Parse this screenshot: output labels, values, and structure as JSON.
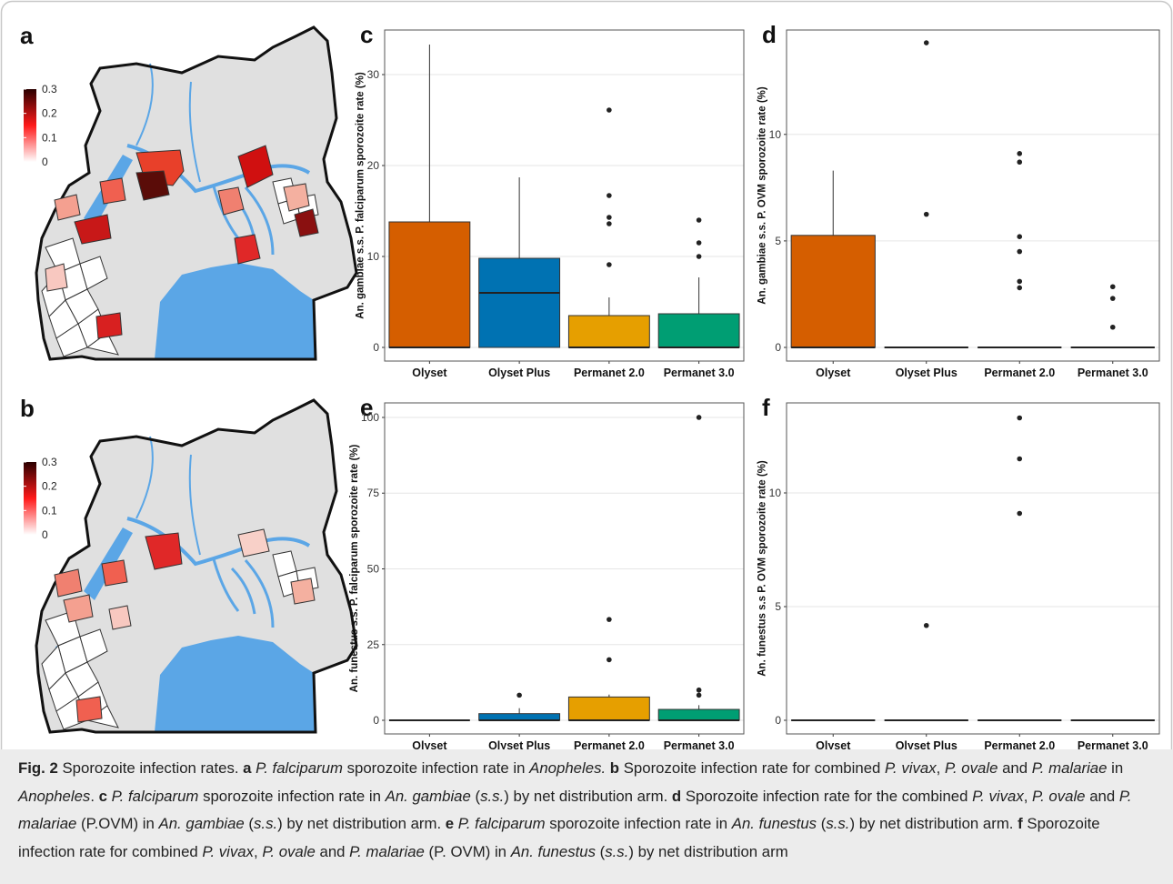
{
  "maps": [
    {
      "label": "a",
      "legend_lim": [
        0,
        0.3
      ],
      "legend_ticks": [
        0,
        0.1,
        0.2,
        0.3
      ],
      "legend_colors": [
        "#ffffff",
        "#ff1a1a",
        "#2a0000"
      ]
    },
    {
      "label": "b",
      "legend_lim": [
        0,
        0.3
      ],
      "legend_ticks": [
        0,
        0.1,
        0.2,
        0.3
      ],
      "legend_colors": [
        "#ffffff",
        "#ff1a1a",
        "#2a0000"
      ]
    }
  ],
  "chart_data": [
    {
      "type": "box",
      "label": "c",
      "y_label": "An. gambiae s.s. P. falciparum sporozoite rate (%)",
      "categories": [
        "Olyset",
        "Olyset Plus",
        "Permanet 2.0",
        "Permanet 3.0"
      ],
      "colors": [
        "#d55e00",
        "#0072b2",
        "#e69f00",
        "#009e73"
      ],
      "boxes": [
        {
          "whisker_low": 0,
          "q1": 0,
          "median": 0,
          "q3": 13.8,
          "whisker_high": 33.3,
          "outliers": []
        },
        {
          "whisker_low": 0,
          "q1": 0,
          "median": 6,
          "q3": 9.8,
          "whisker_high": 18.7,
          "outliers": []
        },
        {
          "whisker_low": 0,
          "q1": 0,
          "median": 0,
          "q3": 3.5,
          "whisker_high": 5.5,
          "outliers": [
            9.1,
            13.6,
            14.3,
            16.7,
            26.1
          ]
        },
        {
          "whisker_low": 0,
          "q1": 0,
          "median": 0,
          "q3": 3.7,
          "whisker_high": 7.7,
          "outliers": [
            10,
            11.5,
            14
          ]
        }
      ],
      "ylim": [
        -1.5,
        34.9
      ],
      "yticks": [
        0,
        10,
        20,
        30
      ],
      "grid": true
    },
    {
      "type": "box",
      "label": "d",
      "y_label": "An. gambiae s.s. P. OVM sporozoite rate (%)",
      "categories": [
        "Olyset",
        "Olyset Plus",
        "Permanet 2.0",
        "Permanet 3.0"
      ],
      "colors": [
        "#d55e00",
        "#0072b2",
        "#e69f00",
        "#009e73"
      ],
      "boxes": [
        {
          "whisker_low": 0,
          "q1": 0,
          "median": 0,
          "q3": 5.26,
          "whisker_high": 8.3,
          "outliers": []
        },
        {
          "whisker_low": 0,
          "q1": 0,
          "median": 0,
          "q3": 0,
          "whisker_high": 0,
          "outliers": [
            6.25,
            14.3
          ]
        },
        {
          "whisker_low": 0,
          "q1": 0,
          "median": 0,
          "q3": 0,
          "whisker_high": 0,
          "outliers": [
            2.8,
            3.1,
            4.5,
            5.2,
            8.7,
            9.1
          ]
        },
        {
          "whisker_low": 0,
          "q1": 0,
          "median": 0,
          "q3": 0,
          "whisker_high": 0,
          "outliers": [
            0.95,
            2.3,
            2.85
          ]
        }
      ],
      "ylim": [
        -0.64,
        14.9
      ],
      "yticks": [
        0,
        5,
        10
      ],
      "grid": true
    },
    {
      "type": "box",
      "label": "e",
      "y_label": "An. funestus s.s. P. falciparum sporozoite rate (%)",
      "categories": [
        "Olyset",
        "Olyset Plus",
        "Permanet 2.0",
        "Permanet 3.0"
      ],
      "colors": [
        "#d55e00",
        "#0072b2",
        "#e69f00",
        "#009e73"
      ],
      "boxes": [
        {
          "whisker_low": 0,
          "q1": 0,
          "median": 0,
          "q3": 0,
          "whisker_high": 0,
          "outliers": []
        },
        {
          "whisker_low": 0,
          "q1": 0,
          "median": 0,
          "q3": 2.2,
          "whisker_high": 4,
          "outliers": [
            8.3
          ]
        },
        {
          "whisker_low": 0,
          "q1": 0,
          "median": 0,
          "q3": 7.7,
          "whisker_high": 8.5,
          "outliers": [
            20,
            33.3
          ]
        },
        {
          "whisker_low": 0,
          "q1": 0,
          "median": 0,
          "q3": 3.6,
          "whisker_high": 5,
          "outliers": [
            8.3,
            10,
            100
          ]
        }
      ],
      "ylim": [
        -4.5,
        104.8
      ],
      "yticks": [
        0,
        25,
        50,
        75,
        100
      ],
      "grid": true
    },
    {
      "type": "box",
      "label": "f",
      "y_label": "An. funestus s.s P. OVM sporozoite rate (%)",
      "categories": [
        "Olyset",
        "Olyset Plus",
        "Permanet 2.0",
        "Permanet 3.0"
      ],
      "colors": [
        "#d55e00",
        "#0072b2",
        "#e69f00",
        "#009e73"
      ],
      "boxes": [
        {
          "whisker_low": 0,
          "q1": 0,
          "median": 0,
          "q3": 0,
          "whisker_high": 0,
          "outliers": []
        },
        {
          "whisker_low": 0,
          "q1": 0,
          "median": 0,
          "q3": 0,
          "whisker_high": 0,
          "outliers": [
            4.17
          ]
        },
        {
          "whisker_low": 0,
          "q1": 0,
          "median": 0,
          "q3": 0,
          "whisker_high": 0,
          "outliers": [
            9.1,
            11.5,
            13.3
          ]
        },
        {
          "whisker_low": 0,
          "q1": 0,
          "median": 0,
          "q3": 0,
          "whisker_high": 0,
          "outliers": []
        }
      ],
      "ylim": [
        -0.6,
        13.96
      ],
      "yticks": [
        0,
        5,
        10
      ],
      "grid": true
    }
  ],
  "caption": {
    "runs": [
      {
        "text": "Fig. 2 ",
        "style": "bold"
      },
      {
        "text": "Sporozoite infection rates. ",
        "style": "normal"
      },
      {
        "text": "a ",
        "style": "bold"
      },
      {
        "text": "P. falciparum",
        "style": "italic"
      },
      {
        "text": " sporozoite infection rate in ",
        "style": "normal"
      },
      {
        "text": "Anopheles. ",
        "style": "italic"
      },
      {
        "text": "b ",
        "style": "bold"
      },
      {
        "text": "Sporozoite infection rate for combined ",
        "style": "normal"
      },
      {
        "text": "P. vivax",
        "style": "italic"
      },
      {
        "text": ", ",
        "style": "normal"
      },
      {
        "text": "P. ovale",
        "style": "italic"
      },
      {
        "text": " and ",
        "style": "normal"
      },
      {
        "text": "P. malariae",
        "style": "italic"
      },
      {
        "text": " in ",
        "style": "normal"
      },
      {
        "text": "Anopheles",
        "style": "italic"
      },
      {
        "text": ". ",
        "style": "normal"
      },
      {
        "text": "c ",
        "style": "bold"
      },
      {
        "text": "P. falciparum",
        "style": "italic"
      },
      {
        "text": " sporozoite infection rate in ",
        "style": "normal"
      },
      {
        "text": "An. gambiae",
        "style": "italic"
      },
      {
        "text": " (",
        "style": "normal"
      },
      {
        "text": "s.s.",
        "style": "italic"
      },
      {
        "text": ") by net distribution arm. ",
        "style": "normal"
      },
      {
        "text": "d ",
        "style": "bold"
      },
      {
        "text": "Sporozoite infection rate for the combined ",
        "style": "normal"
      },
      {
        "text": "P. vivax",
        "style": "italic"
      },
      {
        "text": ", ",
        "style": "normal"
      },
      {
        "text": "P. ovale",
        "style": "italic"
      },
      {
        "text": " and ",
        "style": "normal"
      },
      {
        "text": "P. malariae",
        "style": "italic"
      },
      {
        "text": " (P.OVM) in ",
        "style": "normal"
      },
      {
        "text": "An. gambiae",
        "style": "italic"
      },
      {
        "text": " (",
        "style": "normal"
      },
      {
        "text": "s.s.",
        "style": "italic"
      },
      {
        "text": ") by net distribution arm. ",
        "style": "normal"
      },
      {
        "text": "e ",
        "style": "bold"
      },
      {
        "text": "P. falciparum",
        "style": "italic"
      },
      {
        "text": " sporozoite infection rate in ",
        "style": "normal"
      },
      {
        "text": "An. funestus",
        "style": "italic"
      },
      {
        "text": " (",
        "style": "normal"
      },
      {
        "text": "s.s.",
        "style": "italic"
      },
      {
        "text": ") by net distribution arm. ",
        "style": "normal"
      },
      {
        "text": "f ",
        "style": "bold"
      },
      {
        "text": "Sporozoite infection rate for combined ",
        "style": "normal"
      },
      {
        "text": "P. vivax",
        "style": "italic"
      },
      {
        "text": ", ",
        "style": "normal"
      },
      {
        "text": "P. ovale",
        "style": "italic"
      },
      {
        "text": " and ",
        "style": "normal"
      },
      {
        "text": "P. malariae",
        "style": "italic"
      },
      {
        "text": " (P. OVM) in ",
        "style": "normal"
      },
      {
        "text": "An. funestus",
        "style": "italic"
      },
      {
        "text": " (",
        "style": "normal"
      },
      {
        "text": "s.s.",
        "style": "italic"
      },
      {
        "text": ") by net distribution arm",
        "style": "normal"
      }
    ]
  }
}
